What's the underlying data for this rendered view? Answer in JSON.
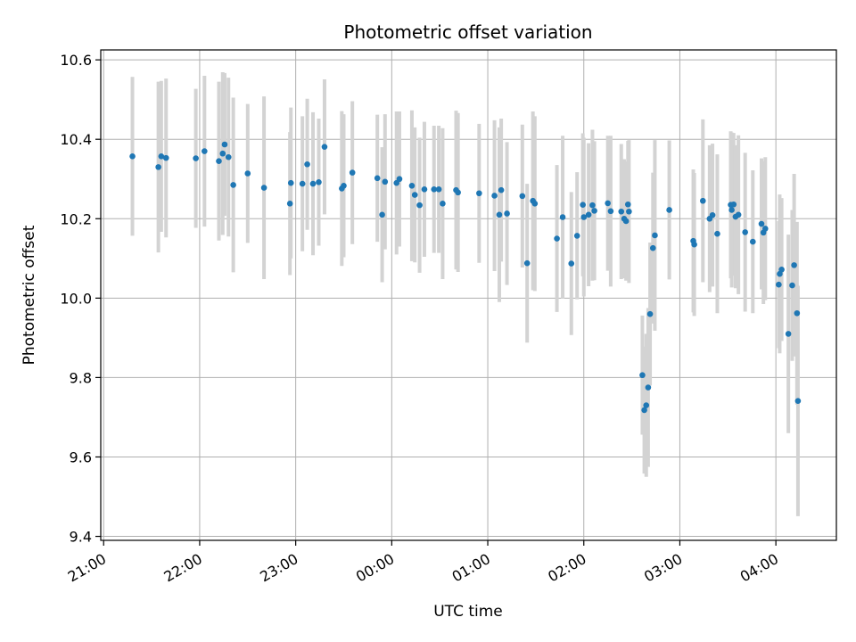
{
  "chart_data": {
    "type": "scatter",
    "title": "Photometric offset variation",
    "xlabel": "UTC time",
    "ylabel": "Photometric offset",
    "x_unit": "hours",
    "xlim": [
      -0.03,
      7.63
    ],
    "ylim": [
      9.39,
      10.625
    ],
    "grid": true,
    "x_ticks": [
      {
        "value": 0,
        "label": "21:00"
      },
      {
        "value": 1,
        "label": "22:00"
      },
      {
        "value": 2,
        "label": "23:00"
      },
      {
        "value": 3,
        "label": "00:00"
      },
      {
        "value": 4,
        "label": "01:00"
      },
      {
        "value": 5,
        "label": "02:00"
      },
      {
        "value": 6,
        "label": "03:00"
      },
      {
        "value": 7,
        "label": "04:00"
      }
    ],
    "y_ticks": [
      {
        "value": 9.4,
        "label": "9.4"
      },
      {
        "value": 9.6,
        "label": "9.6"
      },
      {
        "value": 9.8,
        "label": "9.8"
      },
      {
        "value": 10.0,
        "label": "10.0"
      },
      {
        "value": 10.2,
        "label": "10.2"
      },
      {
        "value": 10.4,
        "label": "10.4"
      },
      {
        "value": 10.6,
        "label": "10.6"
      }
    ],
    "series": [
      {
        "marker_color": "#1f77b4",
        "errorbar_color": "#d3d3d3",
        "points": [
          [
            0.3,
            10.357,
            0.2
          ],
          [
            0.57,
            10.33,
            0.215
          ],
          [
            0.6,
            10.357,
            0.19
          ],
          [
            0.65,
            10.353,
            0.2
          ],
          [
            0.96,
            10.352,
            0.175
          ],
          [
            1.05,
            10.37,
            0.19
          ],
          [
            1.2,
            10.345,
            0.2
          ],
          [
            1.24,
            10.364,
            0.205
          ],
          [
            1.26,
            10.387,
            0.18
          ],
          [
            1.3,
            10.355,
            0.2
          ],
          [
            1.35,
            10.285,
            0.22
          ],
          [
            1.5,
            10.314,
            0.175
          ],
          [
            1.67,
            10.278,
            0.23
          ],
          [
            1.94,
            10.238,
            0.18
          ],
          [
            1.95,
            10.29,
            0.19
          ],
          [
            2.07,
            10.288,
            0.17
          ],
          [
            2.12,
            10.337,
            0.165
          ],
          [
            2.18,
            10.288,
            0.18
          ],
          [
            2.24,
            10.292,
            0.16
          ],
          [
            2.3,
            10.381,
            0.17
          ],
          [
            2.48,
            10.276,
            0.195
          ],
          [
            2.5,
            10.283,
            0.18
          ],
          [
            2.59,
            10.316,
            0.18
          ],
          [
            2.85,
            10.302,
            0.16
          ],
          [
            2.9,
            10.21,
            0.17
          ],
          [
            2.93,
            10.293,
            0.17
          ],
          [
            3.05,
            10.29,
            0.18
          ],
          [
            3.08,
            10.3,
            0.17
          ],
          [
            3.21,
            10.283,
            0.19
          ],
          [
            3.24,
            10.26,
            0.17
          ],
          [
            3.29,
            10.234,
            0.17
          ],
          [
            3.34,
            10.274,
            0.17
          ],
          [
            3.44,
            10.274,
            0.16
          ],
          [
            3.49,
            10.274,
            0.16
          ],
          [
            3.53,
            10.238,
            0.19
          ],
          [
            3.67,
            10.272,
            0.2
          ],
          [
            3.69,
            10.266,
            0.2
          ],
          [
            3.91,
            10.264,
            0.175
          ],
          [
            4.07,
            10.258,
            0.19
          ],
          [
            4.12,
            10.21,
            0.22
          ],
          [
            4.14,
            10.272,
            0.18
          ],
          [
            4.2,
            10.213,
            0.18
          ],
          [
            4.36,
            10.257,
            0.18
          ],
          [
            4.41,
            10.088,
            0.2
          ],
          [
            4.47,
            10.245,
            0.225
          ],
          [
            4.49,
            10.238,
            0.22
          ],
          [
            4.72,
            10.15,
            0.185
          ],
          [
            4.78,
            10.204,
            0.205
          ],
          [
            4.87,
            10.087,
            0.18
          ],
          [
            4.93,
            10.157,
            0.16
          ],
          [
            4.99,
            10.235,
            0.18
          ],
          [
            5.0,
            10.204,
            0.2
          ],
          [
            5.05,
            10.21,
            0.18
          ],
          [
            5.09,
            10.234,
            0.19
          ],
          [
            5.11,
            10.22,
            0.175
          ],
          [
            5.25,
            10.239,
            0.17
          ],
          [
            5.28,
            10.219,
            0.19
          ],
          [
            5.39,
            10.218,
            0.17
          ],
          [
            5.42,
            10.2,
            0.15
          ],
          [
            5.44,
            10.194,
            0.15
          ],
          [
            5.46,
            10.236,
            0.16
          ],
          [
            5.47,
            10.218,
            0.18
          ],
          [
            5.61,
            9.806,
            0.15
          ],
          [
            5.63,
            9.718,
            0.16
          ],
          [
            5.65,
            9.73,
            0.18
          ],
          [
            5.67,
            9.775,
            0.2
          ],
          [
            5.69,
            9.96,
            0.18
          ],
          [
            5.72,
            10.126,
            0.19
          ],
          [
            5.74,
            10.158,
            0.24
          ],
          [
            5.89,
            10.222,
            0.175
          ],
          [
            6.14,
            10.144,
            0.18
          ],
          [
            6.15,
            10.135,
            0.18
          ],
          [
            6.24,
            10.245,
            0.205
          ],
          [
            6.31,
            10.2,
            0.185
          ],
          [
            6.34,
            10.209,
            0.18
          ],
          [
            6.39,
            10.162,
            0.2
          ],
          [
            6.53,
            10.235,
            0.185
          ],
          [
            6.54,
            10.222,
            0.195
          ],
          [
            6.56,
            10.236,
            0.18
          ],
          [
            6.58,
            10.205,
            0.18
          ],
          [
            6.61,
            10.21,
            0.2
          ],
          [
            6.68,
            10.166,
            0.2
          ],
          [
            6.76,
            10.142,
            0.18
          ],
          [
            6.85,
            10.187,
            0.165
          ],
          [
            6.87,
            10.165,
            0.18
          ],
          [
            6.89,
            10.175,
            0.18
          ],
          [
            7.03,
            10.034,
            0.16
          ],
          [
            7.04,
            10.061,
            0.2
          ],
          [
            7.06,
            10.072,
            0.18
          ],
          [
            7.13,
            9.91,
            0.25
          ],
          [
            7.17,
            10.032,
            0.19
          ],
          [
            7.19,
            10.083,
            0.23
          ],
          [
            7.22,
            9.962,
            0.23
          ],
          [
            7.23,
            9.741,
            0.29
          ]
        ]
      }
    ]
  }
}
